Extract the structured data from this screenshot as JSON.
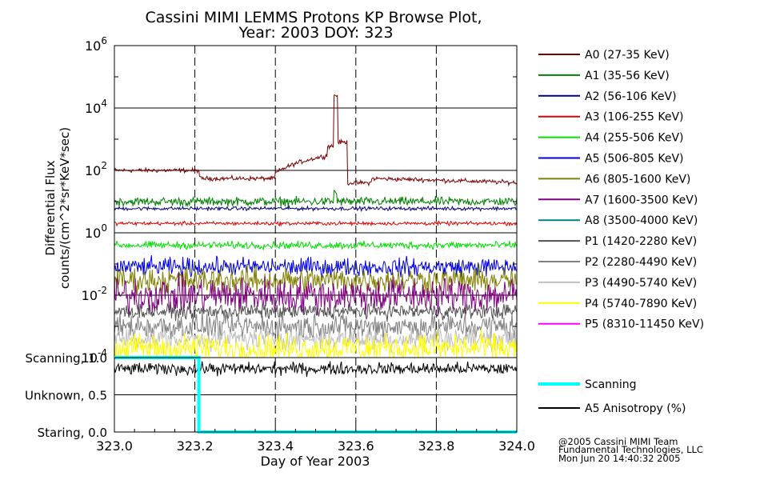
{
  "chart_data": [
    {
      "type": "line",
      "title": "Cassini MIMI LEMMS Protons KP Browse Plot,",
      "subtitle": "Year: 2003 DOY: 323",
      "ylabel_line1": "Differential Flux",
      "ylabel_line2": "counts/(cm^2*sr*KeV*sec)",
      "yscale": "log",
      "ylim": [
        0.0001,
        1000000
      ],
      "ytick_values": [
        0.0001,
        0.01,
        1,
        100,
        10000,
        1000000
      ],
      "ytick_mantissa": "10",
      "ytick_exponents": [
        "-4",
        "-2",
        "0",
        "2",
        "4",
        "6"
      ],
      "xlim": [
        323.0,
        324.0
      ],
      "grid": true,
      "legend_position": "right",
      "series": [
        {
          "name": "A0 (27-35 KeV)",
          "color": "#7a0000",
          "baseline": 100,
          "noise": 0.06,
          "events": "drop-323.21:0.5;ramp-323.40:323.53;spike-323.55:25000;drop-323.58:0.5"
        },
        {
          "name": "A1 (35-56 KeV)",
          "color": "#008000",
          "baseline": 10,
          "noise": 0.12,
          "events": "spike-323.55:20"
        },
        {
          "name": "A2 (56-106 KeV)",
          "color": "#000080",
          "baseline": 6,
          "noise": 0.05
        },
        {
          "name": "A3 (106-255 KeV)",
          "color": "#e00000",
          "baseline": 2,
          "noise": 0.05
        },
        {
          "name": "A4 (255-506 KeV)",
          "color": "#00e000",
          "baseline": 0.4,
          "noise": 0.1
        },
        {
          "name": "A5 (506-805 KeV)",
          "color": "#0000e0",
          "baseline": 0.08,
          "noise": 0.25
        },
        {
          "name": "A6 (805-1600 KeV)",
          "color": "#808000",
          "baseline": 0.03,
          "noise": 0.35
        },
        {
          "name": "A7 (1600-3500 KeV)",
          "color": "#800080",
          "baseline": 0.01,
          "noise": 0.5
        },
        {
          "name": "A8 (3500-4000 KeV)",
          "color": "#008080",
          "baseline": 0.0001,
          "noise": 0.0
        },
        {
          "name": "P1 (1420-2280 KeV)",
          "color": "#505050",
          "baseline": 0.003,
          "noise": 0.2
        },
        {
          "name": "P2 (2280-4490 KeV)",
          "color": "#808080",
          "baseline": 0.001,
          "noise": 0.35
        },
        {
          "name": "P3 (4490-5740 KeV)",
          "color": "#c0c0c0",
          "baseline": 0.0004,
          "noise": 0.3
        },
        {
          "name": "P4 (5740-7890 KeV)",
          "color": "#ffff00",
          "baseline": 0.0002,
          "noise": 0.4
        },
        {
          "name": "P5 (8310-11450 KeV)",
          "color": "#ff00ff",
          "baseline": 0.0001,
          "noise": 0.0
        }
      ]
    },
    {
      "type": "line",
      "xlabel": "Day of Year 2003",
      "xlim": [
        323.0,
        324.0
      ],
      "ylim": [
        0.0,
        1.0
      ],
      "xticks": [
        "323.0",
        "323.2",
        "323.4",
        "323.6",
        "323.8",
        "324.0"
      ],
      "xtick_values": [
        323.0,
        323.2,
        323.4,
        323.6,
        323.8,
        324.0
      ],
      "yticks": [
        "Staring, 0.0",
        "Unknown, 0.5",
        "Scanning, 1.0"
      ],
      "ytick_values": [
        0.0,
        0.5,
        1.0
      ],
      "series": [
        {
          "name": "Scanning",
          "color": "#00ffff",
          "x": [
            323.0,
            323.21,
            323.21,
            324.0
          ],
          "y": [
            1.0,
            1.0,
            0.0,
            0.0
          ]
        },
        {
          "name": "A5 Anisotropy (%)",
          "color": "#000000",
          "baseline": 0.85,
          "noise": 0.07
        }
      ]
    }
  ],
  "footer": {
    "line1": "@2005 Cassini MIMI Team",
    "line2": "Fundamental Technologies, LLC",
    "line3": "Mon Jun 20 14:40:32 2005"
  }
}
